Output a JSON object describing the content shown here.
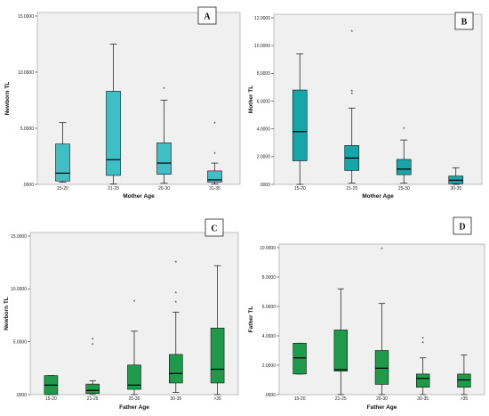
{
  "colors": {
    "panel_bg": "#f0f0f0",
    "box_teal": "#3fbfc4",
    "box_teal_dark": "#17a5a8",
    "box_green": "#1e9a4a",
    "axis": "#333333"
  },
  "chart_data": [
    {
      "panel": "A",
      "type": "box",
      "xlabel": "Mother Age",
      "ylabel": "Newborn TL",
      "ylim": [
        0,
        15
      ],
      "yticks": [
        0,
        5,
        10,
        15
      ],
      "ytick_labels": [
        ".0000",
        "5.0000",
        "10.0000",
        "15.0000"
      ],
      "categories": [
        "15-20",
        "21-25",
        "26-30",
        "31-35"
      ],
      "boxes": [
        {
          "min": 0.2,
          "q1": 0.3,
          "median": 1.0,
          "q3": 3.6,
          "max": 5.5,
          "outliers": []
        },
        {
          "min": 0.05,
          "q1": 0.8,
          "median": 2.2,
          "q3": 8.3,
          "max": 12.5,
          "outliers": []
        },
        {
          "min": 0.1,
          "q1": 0.9,
          "median": 1.9,
          "q3": 3.7,
          "max": 7.5,
          "outliers": [
            8.5
          ]
        },
        {
          "min": 0.05,
          "q1": 0.2,
          "median": 0.4,
          "q3": 1.2,
          "max": 1.9,
          "outliers": [
            2.7,
            5.4
          ]
        }
      ]
    },
    {
      "panel": "B",
      "type": "box",
      "xlabel": "Mother Age",
      "ylabel": "Mother TL",
      "ylim": [
        0,
        12
      ],
      "yticks": [
        0,
        2,
        4,
        6,
        8,
        10,
        12
      ],
      "ytick_labels": [
        ".0000",
        "2.0000",
        "4.0000",
        "6.0000",
        "8.0000",
        "10.0000",
        "12.0000"
      ],
      "categories": [
        "15-20",
        "21-25",
        "25-30",
        "30-35"
      ],
      "boxes": [
        {
          "min": 0.0,
          "q1": 1.7,
          "median": 3.8,
          "q3": 6.8,
          "max": 9.4,
          "outliers": []
        },
        {
          "min": 0.1,
          "q1": 1.0,
          "median": 1.9,
          "q3": 2.8,
          "max": 5.5,
          "outliers": [
            6.5,
            6.7,
            11.0
          ]
        },
        {
          "min": 0.1,
          "q1": 0.7,
          "median": 1.1,
          "q3": 1.8,
          "max": 3.2,
          "outliers": [
            4.0
          ]
        },
        {
          "min": 0.0,
          "q1": 0.05,
          "median": 0.3,
          "q3": 0.6,
          "max": 1.2,
          "outliers": []
        }
      ]
    },
    {
      "panel": "C",
      "type": "box",
      "xlabel": "Father Age",
      "ylabel": "Newborn TL",
      "ylim": [
        0,
        15
      ],
      "yticks": [
        0,
        5,
        10,
        15
      ],
      "ytick_labels": [
        ".0000",
        "5.0000",
        "10.0000",
        "15.0000"
      ],
      "categories": [
        "15-20",
        "21-25",
        "25-30",
        "30-35",
        ">35"
      ],
      "boxes": [
        {
          "min": 0.0,
          "q1": 0.0,
          "median": 0.9,
          "q3": 1.8,
          "max": 1.8,
          "outliers": []
        },
        {
          "min": 0.0,
          "q1": 0.1,
          "median": 0.4,
          "q3": 1.0,
          "max": 1.3,
          "outliers": [
            4.7,
            5.2
          ]
        },
        {
          "min": 0.0,
          "q1": 0.5,
          "median": 0.9,
          "q3": 2.8,
          "max": 6.0,
          "outliers": [
            8.8
          ]
        },
        {
          "min": 0.2,
          "q1": 1.1,
          "median": 2.0,
          "q3": 3.8,
          "max": 7.8,
          "outliers": [
            8.7,
            9.6,
            12.5
          ]
        },
        {
          "min": 0.0,
          "q1": 1.1,
          "median": 2.4,
          "q3": 6.3,
          "max": 12.2,
          "outliers": []
        }
      ]
    },
    {
      "panel": "D",
      "type": "box",
      "xlabel": "Father Age",
      "ylabel": "Father TL",
      "ylim": [
        0,
        10
      ],
      "yticks": [
        0,
        2,
        4,
        6,
        8,
        10
      ],
      "ytick_labels": [
        ".0000",
        "2.0000",
        "4.0000",
        "6.0000",
        "8.0000",
        "10.0000"
      ],
      "categories": [
        "15-20",
        "21-25",
        "26-30",
        "30-35",
        ">35"
      ],
      "boxes": [
        {
          "min": 1.4,
          "q1": 1.4,
          "median": 2.5,
          "q3": 3.5,
          "max": 3.5,
          "outliers": []
        },
        {
          "min": 0.0,
          "q1": 1.6,
          "median": 1.7,
          "q3": 4.4,
          "max": 7.2,
          "outliers": []
        },
        {
          "min": 0.0,
          "q1": 0.7,
          "median": 1.8,
          "q3": 3.0,
          "max": 6.2,
          "outliers": [
            9.9
          ]
        },
        {
          "min": 0.0,
          "q1": 0.5,
          "median": 1.1,
          "q3": 1.4,
          "max": 2.5,
          "outliers": [
            3.5,
            3.8
          ]
        },
        {
          "min": 0.0,
          "q1": 0.5,
          "median": 1.0,
          "q3": 1.4,
          "max": 2.7,
          "outliers": []
        }
      ]
    }
  ]
}
